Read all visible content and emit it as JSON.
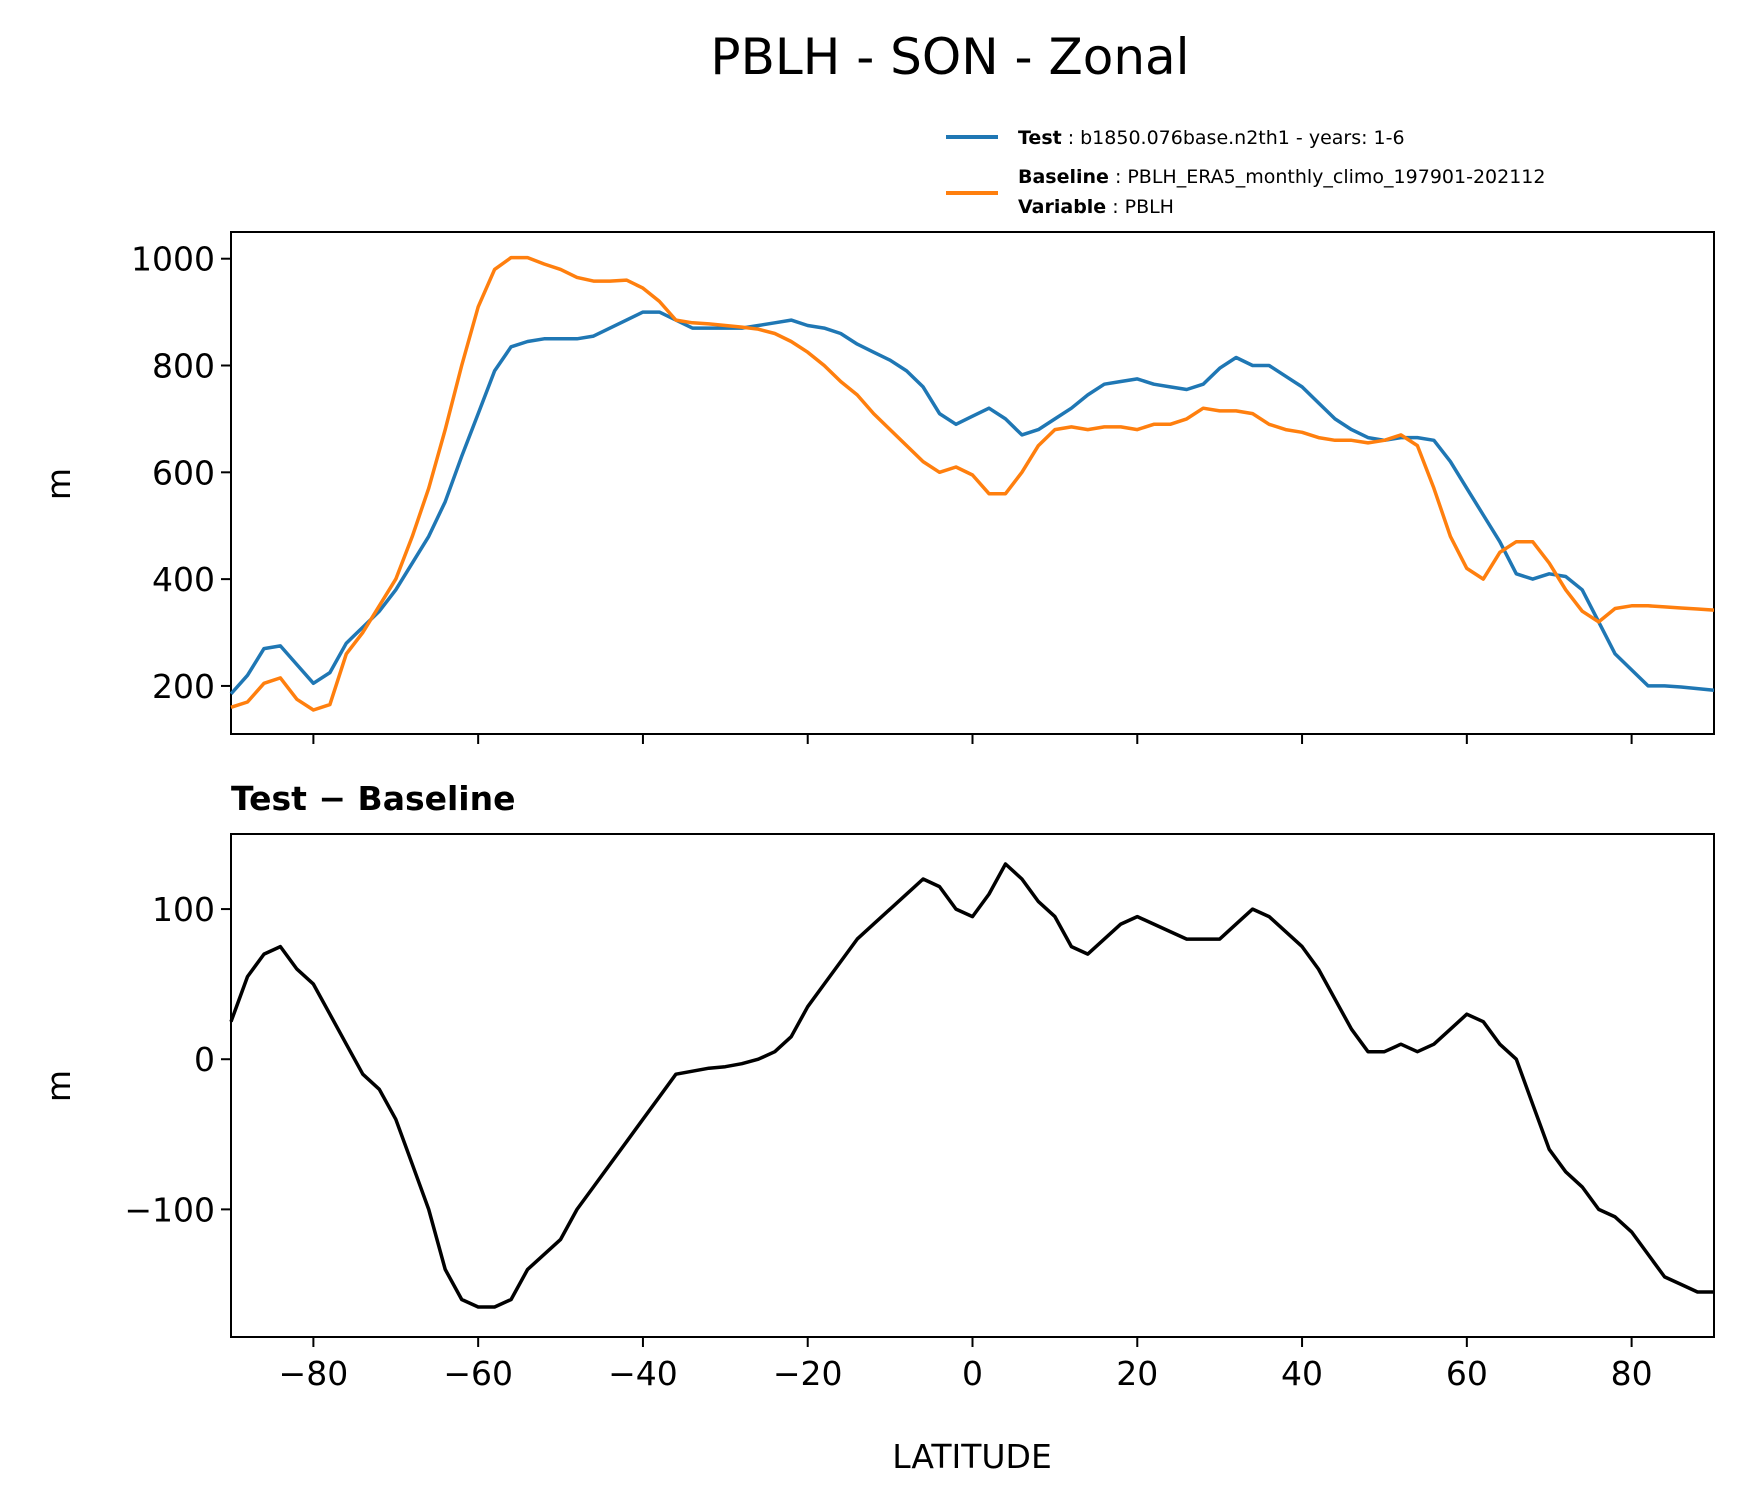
{
  "chart_data": [
    {
      "type": "line",
      "title": "PBLH - SON - Zonal",
      "ylabel": "m",
      "xlim": [
        -90,
        90
      ],
      "ylim": [
        110,
        1050
      ],
      "xticks": [
        -80,
        -60,
        -40,
        -20,
        0,
        20,
        40,
        60,
        80
      ],
      "yticks": [
        200,
        400,
        600,
        800,
        1000
      ],
      "legend": {
        "placement": "top-right",
        "entries": [
          {
            "key": "Test",
            "sep": ":",
            "value": "b1850.076base.n2th1 - years: 1-6",
            "color": "#1f77b4"
          },
          {
            "key": "Baseline",
            "sep": ":",
            "value": "PBLH_ERA5_monthly_climo_197901-202112",
            "color": "#ff7f0e"
          },
          {
            "key": "Variable",
            "sep": ":",
            "value": "PBLH",
            "color": ""
          }
        ]
      },
      "series": [
        {
          "color": "#1f77b4",
          "x": [
            -90,
            -88,
            -86,
            -84,
            -82,
            -80,
            -78,
            -76,
            -74,
            -72,
            -70,
            -68,
            -66,
            -64,
            -62,
            -60,
            -58,
            -56,
            -54,
            -52,
            -50,
            -48,
            -46,
            -44,
            -42,
            -40,
            -38,
            -36,
            -34,
            -32,
            -30,
            -28,
            -26,
            -24,
            -22,
            -20,
            -18,
            -16,
            -14,
            -12,
            -10,
            -8,
            -6,
            -4,
            -2,
            0,
            2,
            4,
            6,
            8,
            10,
            12,
            14,
            16,
            18,
            20,
            22,
            24,
            26,
            28,
            30,
            32,
            34,
            36,
            38,
            40,
            42,
            44,
            46,
            48,
            50,
            52,
            54,
            56,
            58,
            60,
            62,
            64,
            66,
            68,
            70,
            72,
            74,
            76,
            78,
            80,
            82,
            84,
            86,
            88,
            90
          ],
          "values": [
            185,
            220,
            270,
            275,
            240,
            205,
            225,
            280,
            310,
            340,
            380,
            430,
            480,
            545,
            630,
            710,
            790,
            835,
            845,
            850,
            850,
            850,
            855,
            870,
            885,
            900,
            900,
            885,
            870,
            870,
            870,
            870,
            875,
            880,
            885,
            875,
            870,
            860,
            840,
            825,
            810,
            790,
            760,
            710,
            690,
            705,
            720,
            700,
            670,
            680,
            700,
            720,
            745,
            765,
            770,
            775,
            765,
            760,
            755,
            765,
            795,
            815,
            800,
            800,
            780,
            760,
            730,
            700,
            680,
            665,
            660,
            665,
            665,
            660,
            620,
            570,
            520,
            470,
            410,
            400,
            410,
            405,
            380,
            320,
            260,
            230,
            200,
            200,
            198,
            195,
            192
          ]
        },
        {
          "color": "#ff7f0e",
          "x": [
            -90,
            -88,
            -86,
            -84,
            -82,
            -80,
            -78,
            -76,
            -74,
            -72,
            -70,
            -68,
            -66,
            -64,
            -62,
            -60,
            -58,
            -56,
            -54,
            -52,
            -50,
            -48,
            -46,
            -44,
            -42,
            -40,
            -38,
            -36,
            -34,
            -32,
            -30,
            -28,
            -26,
            -24,
            -22,
            -20,
            -18,
            -16,
            -14,
            -12,
            -10,
            -8,
            -6,
            -4,
            -2,
            0,
            2,
            4,
            6,
            8,
            10,
            12,
            14,
            16,
            18,
            20,
            22,
            24,
            26,
            28,
            30,
            32,
            34,
            36,
            38,
            40,
            42,
            44,
            46,
            48,
            50,
            52,
            54,
            56,
            58,
            60,
            62,
            64,
            66,
            68,
            70,
            72,
            74,
            76,
            78,
            80,
            82,
            84,
            86,
            88,
            90
          ],
          "values": [
            160,
            170,
            205,
            215,
            175,
            155,
            165,
            260,
            300,
            350,
            400,
            480,
            570,
            680,
            800,
            910,
            980,
            1002,
            1002,
            990,
            980,
            965,
            958,
            958,
            960,
            945,
            920,
            885,
            880,
            878,
            875,
            872,
            868,
            860,
            845,
            825,
            800,
            770,
            745,
            710,
            680,
            650,
            620,
            600,
            610,
            595,
            560,
            560,
            600,
            650,
            680,
            685,
            680,
            685,
            685,
            680,
            690,
            690,
            700,
            720,
            715,
            715,
            710,
            690,
            680,
            675,
            665,
            660,
            660,
            655,
            660,
            670,
            650,
            570,
            480,
            420,
            400,
            450,
            470,
            470,
            430,
            380,
            340,
            320,
            345,
            350,
            350,
            348,
            346,
            344,
            342
          ]
        }
      ]
    },
    {
      "type": "line",
      "title": "Test − Baseline",
      "xlabel": "LATITUDE",
      "ylabel": "m",
      "xlim": [
        -90,
        90
      ],
      "ylim": [
        -185,
        150
      ],
      "xticks": [
        -80,
        -60,
        -40,
        -20,
        0,
        20,
        40,
        60,
        80
      ],
      "yticks": [
        100,
        0,
        -100
      ],
      "series": [
        {
          "color": "#000000",
          "x": [
            -90,
            -88,
            -86,
            -84,
            -82,
            -80,
            -78,
            -76,
            -74,
            -72,
            -70,
            -68,
            -66,
            -64,
            -62,
            -60,
            -58,
            -56,
            -54,
            -52,
            -50,
            -48,
            -46,
            -44,
            -42,
            -40,
            -38,
            -36,
            -34,
            -32,
            -30,
            -28,
            -26,
            -24,
            -22,
            -20,
            -18,
            -16,
            -14,
            -12,
            -10,
            -8,
            -6,
            -4,
            -2,
            0,
            2,
            4,
            6,
            8,
            10,
            12,
            14,
            16,
            18,
            20,
            22,
            24,
            26,
            28,
            30,
            32,
            34,
            36,
            38,
            40,
            42,
            44,
            46,
            48,
            50,
            52,
            54,
            56,
            58,
            60,
            62,
            64,
            66,
            68,
            70,
            72,
            74,
            76,
            78,
            80,
            82,
            84,
            86,
            88,
            90
          ],
          "values": [
            25,
            55,
            70,
            75,
            60,
            50,
            30,
            10,
            -10,
            -20,
            -40,
            -70,
            -100,
            -140,
            -160,
            -165,
            -165,
            -160,
            -140,
            -130,
            -120,
            -100,
            -85,
            -70,
            -55,
            -40,
            -25,
            -10,
            -8,
            -6,
            -5,
            -3,
            0,
            5,
            15,
            35,
            50,
            65,
            80,
            90,
            100,
            110,
            120,
            115,
            100,
            95,
            110,
            130,
            120,
            105,
            95,
            75,
            70,
            80,
            90,
            95,
            90,
            85,
            80,
            80,
            80,
            90,
            100,
            95,
            85,
            75,
            60,
            40,
            20,
            5,
            5,
            10,
            5,
            10,
            20,
            30,
            25,
            10,
            0,
            -30,
            -60,
            -75,
            -85,
            -100,
            -105,
            -115,
            -130,
            -145,
            -150,
            -155,
            -155
          ]
        }
      ]
    }
  ]
}
